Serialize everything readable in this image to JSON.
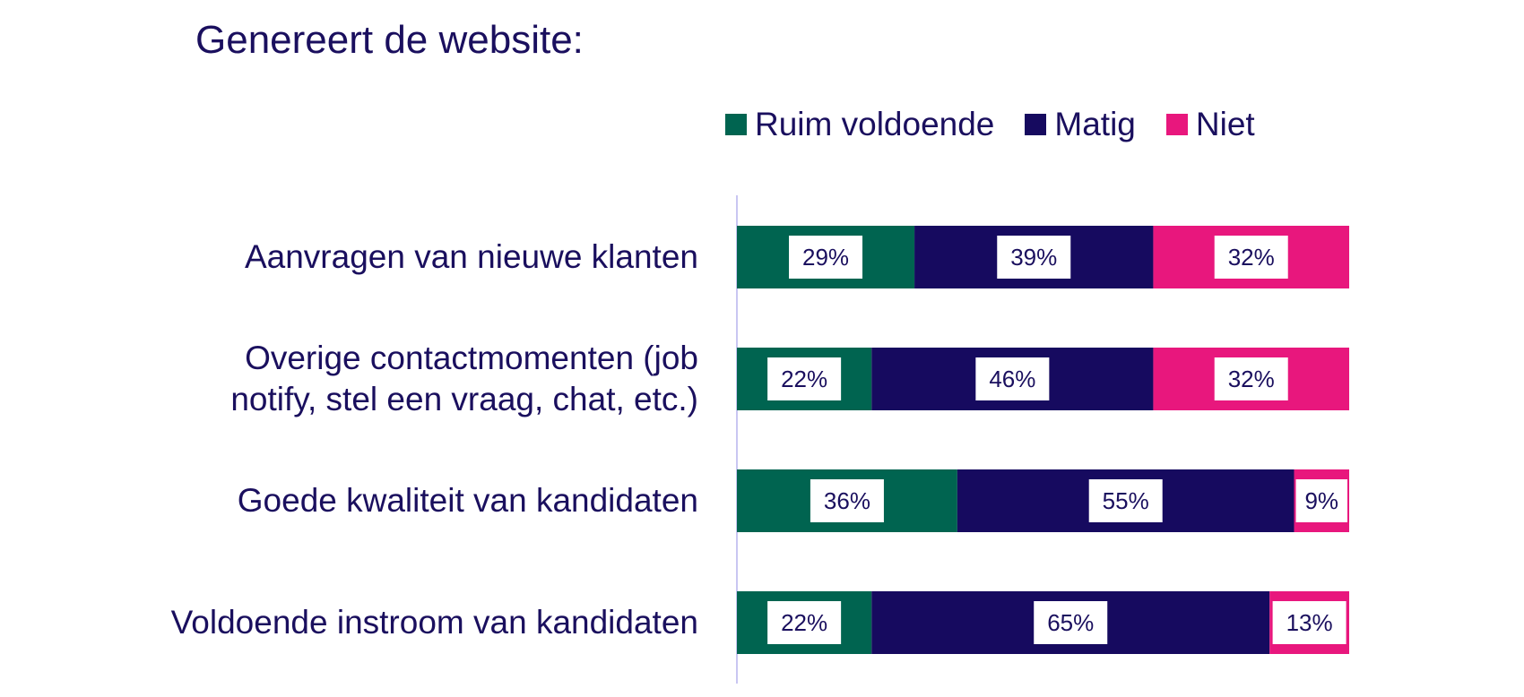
{
  "chart_data": {
    "type": "bar",
    "orientation": "horizontal",
    "stacked": true,
    "title": "Genereert de website:",
    "categories": [
      "Aanvragen van nieuwe klanten",
      "Overige contactmomenten (job notify, stel een vraag, chat, etc.)",
      "Goede kwaliteit van kandidaten",
      "Voldoende instroom van kandidaten"
    ],
    "category_lines": [
      [
        "Aanvragen van nieuwe klanten"
      ],
      [
        "Overige contactmomenten (job",
        "notify, stel een vraag, chat, etc.)"
      ],
      [
        "Goede kwaliteit van kandidaten"
      ],
      [
        "Voldoende instroom van kandidaten"
      ]
    ],
    "series": [
      {
        "name": "Ruim voldoende",
        "color": "#006450",
        "values": [
          29,
          22,
          36,
          22
        ]
      },
      {
        "name": "Matig",
        "color": "#160a5f",
        "values": [
          39,
          46,
          55,
          65
        ]
      },
      {
        "name": "Niet",
        "color": "#e8177d",
        "values": [
          32,
          32,
          9,
          13
        ]
      }
    ],
    "value_suffix": "%",
    "xlim": [
      0,
      100
    ],
    "legend_position": "top",
    "grid": false
  }
}
